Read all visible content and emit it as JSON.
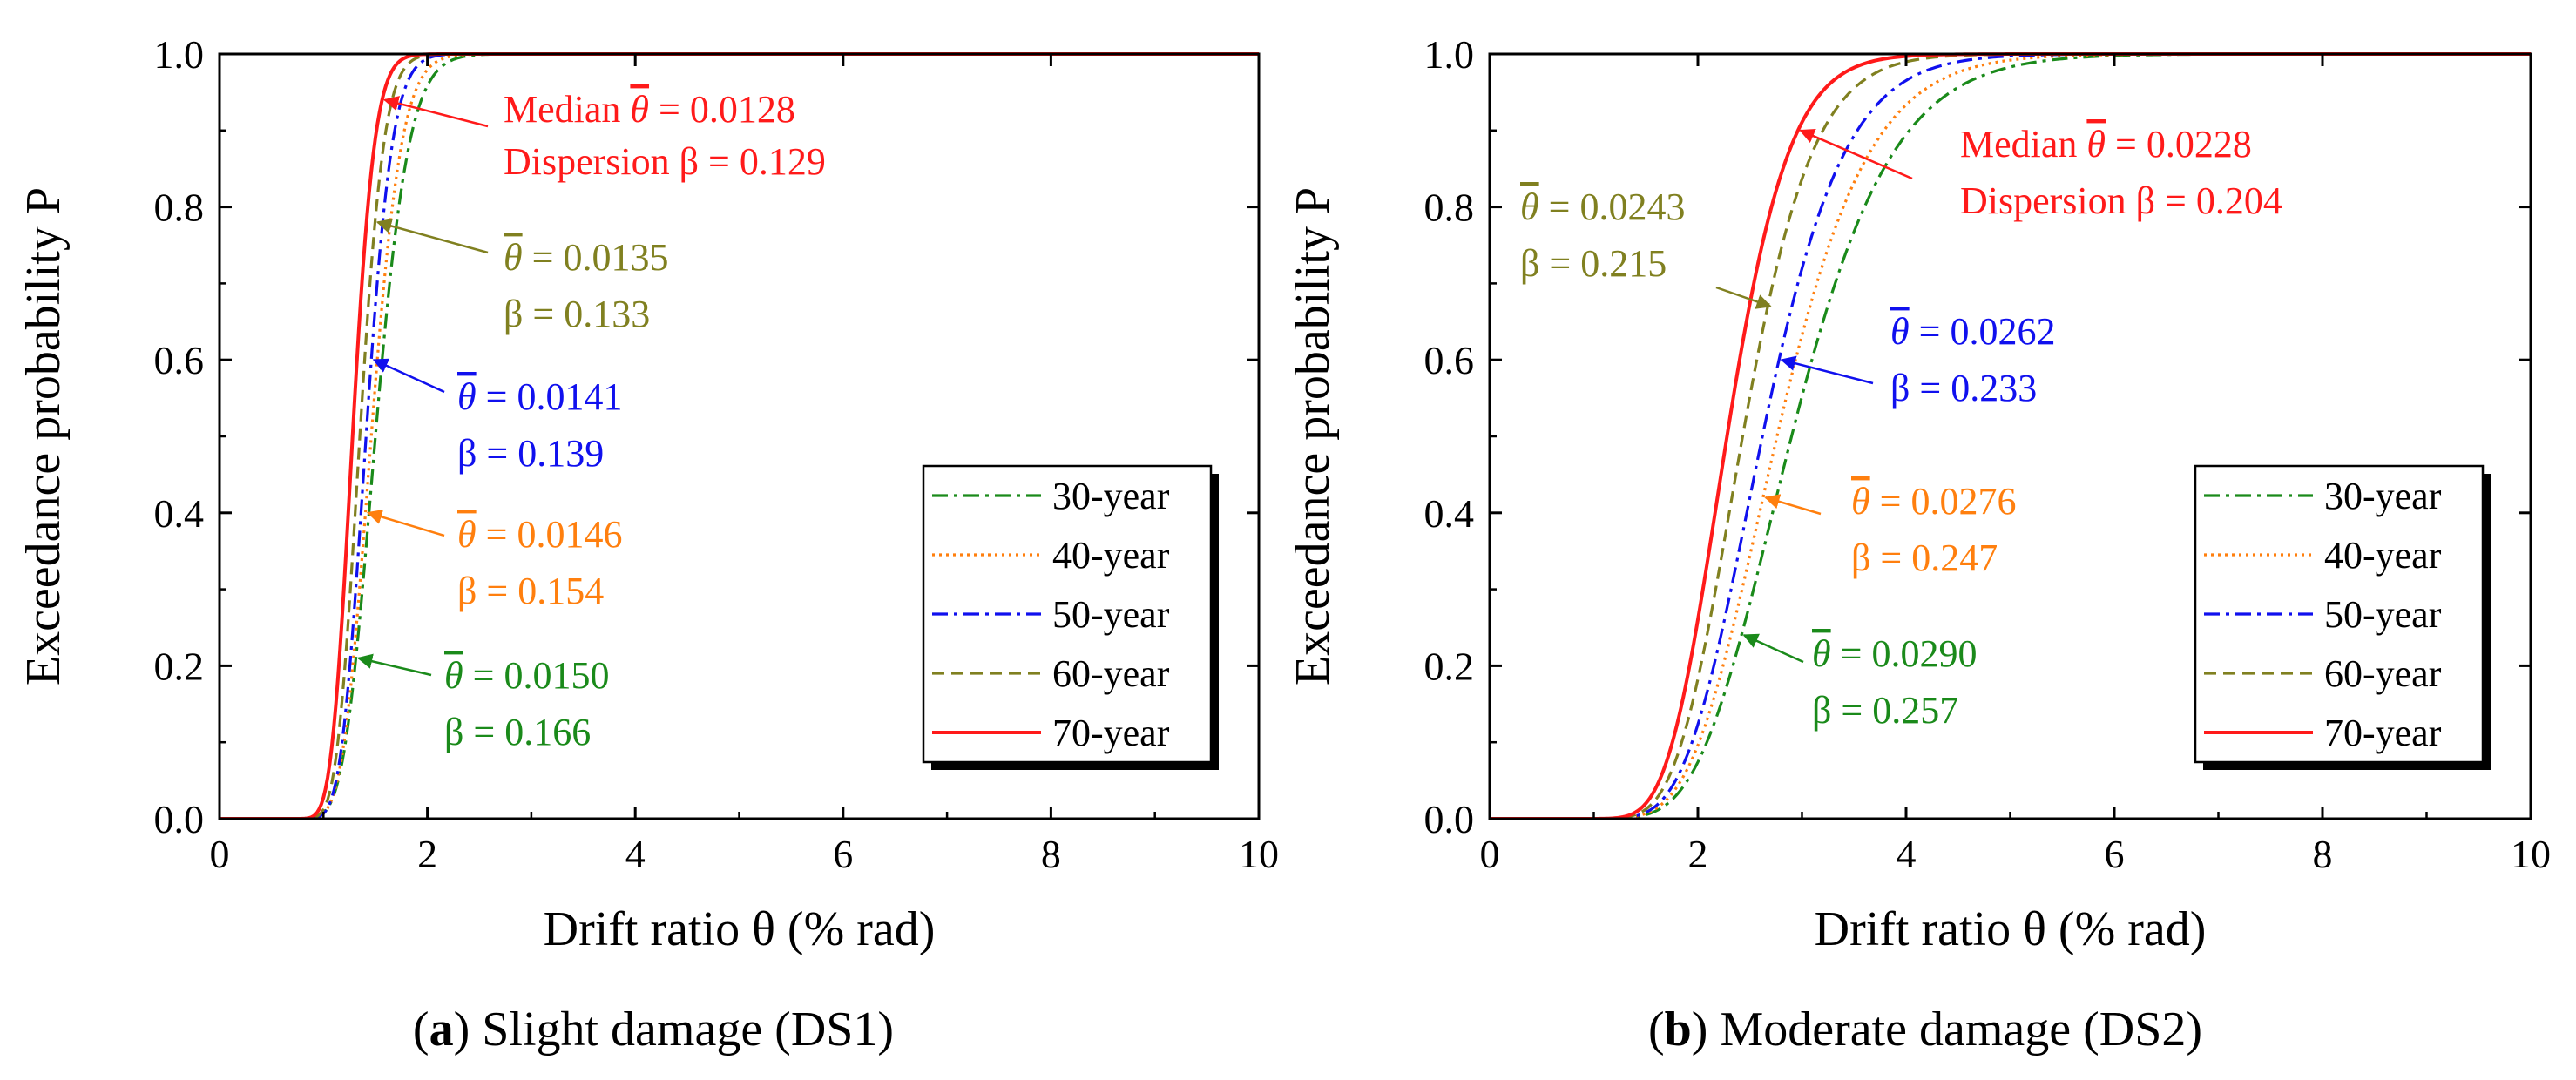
{
  "colors": {
    "y30": "#1a8a1a",
    "y40": "#ff7f0e",
    "y50": "#1010ee",
    "y60": "#808020",
    "y70": "#ff1a1a",
    "axis": "#000000"
  },
  "chart_data": [
    {
      "type": "line",
      "panel": "a",
      "caption_letter": "a",
      "caption_rest": " Slight damage (DS1)",
      "xlabel": "Drift ratio θ (% rad)",
      "ylabel": "Exceedance probability P",
      "xlim": [
        0,
        10
      ],
      "ylim": [
        0,
        1
      ],
      "xticks": [
        "0",
        "2",
        "4",
        "6",
        "8",
        "10"
      ],
      "yticks": [
        "0.0",
        "0.2",
        "0.4",
        "0.6",
        "0.8",
        "1.0"
      ],
      "grid": false,
      "legend_position": "lower-right",
      "series": [
        {
          "name": "30-year",
          "median": 1.5,
          "beta": 0.166,
          "dash": "dashdot",
          "color_key": "y30"
        },
        {
          "name": "40-year",
          "median": 1.46,
          "beta": 0.154,
          "dash": "dotted",
          "color_key": "y40"
        },
        {
          "name": "50-year",
          "median": 1.41,
          "beta": 0.139,
          "dash": "dashdot",
          "color_key": "y50"
        },
        {
          "name": "60-year",
          "median": 1.35,
          "beta": 0.133,
          "dash": "dashed",
          "color_key": "y60"
        },
        {
          "name": "70-year",
          "median": 1.28,
          "beta": 0.129,
          "dash": "solid",
          "color_key": "y70"
        }
      ],
      "annotations": [
        {
          "id": "a70",
          "color_key": "y70",
          "line1_prefix": "Median ",
          "line1_value": " = 0.0128",
          "line2": "Dispersion β = 0.129",
          "arrow_p": 0.94
        },
        {
          "id": "a60",
          "color_key": "y60",
          "line1_prefix": "",
          "line1_value": " = 0.0135",
          "line2": "β = 0.133",
          "arrow_p": 0.78
        },
        {
          "id": "a50",
          "color_key": "y50",
          "line1_prefix": "",
          "line1_value": " = 0.0141",
          "line2": "β = 0.139",
          "arrow_p": 0.6
        },
        {
          "id": "a40",
          "color_key": "y40",
          "line1_prefix": "",
          "line1_value": " = 0.0146",
          "line2": "β = 0.154",
          "arrow_p": 0.4
        },
        {
          "id": "a30",
          "color_key": "y30",
          "line1_prefix": "",
          "line1_value": " = 0.0150",
          "line2": "β = 0.166",
          "arrow_p": 0.21
        }
      ]
    },
    {
      "type": "line",
      "panel": "b",
      "caption_letter": "b",
      "caption_rest": " Moderate damage (DS2)",
      "xlabel": "Drift ratio θ (% rad)",
      "ylabel": "Exceedance probability P",
      "xlim": [
        0,
        10
      ],
      "ylim": [
        0,
        1
      ],
      "xticks": [
        "0",
        "2",
        "4",
        "6",
        "8",
        "10"
      ],
      "yticks": [
        "0.0",
        "0.2",
        "0.4",
        "0.6",
        "0.8",
        "1.0"
      ],
      "grid": false,
      "legend_position": "lower-right",
      "series": [
        {
          "name": "30-year",
          "median": 2.9,
          "beta": 0.257,
          "dash": "dashdot",
          "color_key": "y30"
        },
        {
          "name": "40-year",
          "median": 2.76,
          "beta": 0.247,
          "dash": "dotted",
          "color_key": "y40"
        },
        {
          "name": "50-year",
          "median": 2.62,
          "beta": 0.233,
          "dash": "dashdot",
          "color_key": "y50"
        },
        {
          "name": "60-year",
          "median": 2.43,
          "beta": 0.215,
          "dash": "dashed",
          "color_key": "y60"
        },
        {
          "name": "70-year",
          "median": 2.28,
          "beta": 0.204,
          "dash": "solid",
          "color_key": "y70"
        }
      ],
      "annotations": [
        {
          "id": "b70",
          "color_key": "y70",
          "line1_prefix": "Median ",
          "line1_value": " = 0.0228",
          "line2": "Dispersion β = 0.204",
          "arrow_p": 0.9
        },
        {
          "id": "b60",
          "color_key": "y60",
          "line1_prefix": "",
          "line1_value": " = 0.0243",
          "line2": "β = 0.215",
          "arrow_p": 0.67
        },
        {
          "id": "b50",
          "color_key": "y50",
          "line1_prefix": "",
          "line1_value": " = 0.0262",
          "line2": "β = 0.233",
          "arrow_p": 0.6
        },
        {
          "id": "b40",
          "color_key": "y40",
          "line1_prefix": "",
          "line1_value": " = 0.0276",
          "line2": "β = 0.247",
          "arrow_p": 0.42
        },
        {
          "id": "b30",
          "color_key": "y30",
          "line1_prefix": "",
          "line1_value": " = 0.0290",
          "line2": "β = 0.257",
          "arrow_p": 0.24
        }
      ]
    }
  ]
}
